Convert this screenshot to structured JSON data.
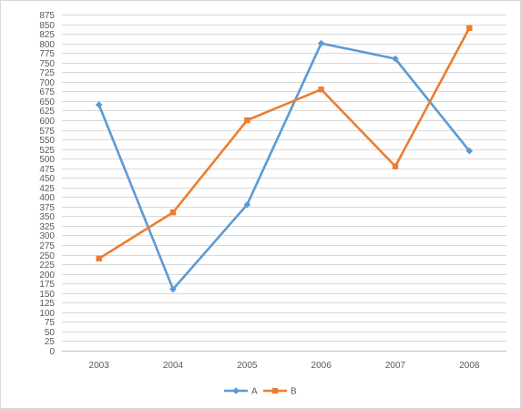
{
  "chart_data": {
    "type": "line",
    "title": "",
    "xlabel": "",
    "ylabel": "",
    "categories": [
      "2003",
      "2004",
      "2005",
      "2006",
      "2007",
      "2008"
    ],
    "ylim": [
      0,
      875
    ],
    "y_ticks": [
      "0",
      "25",
      "50",
      "75",
      "100",
      "125",
      "150",
      "175",
      "200",
      "225",
      "250",
      "275",
      "300",
      "325",
      "350",
      "375",
      "400",
      "425",
      "450",
      "475",
      "500",
      "525",
      "550",
      "575",
      "600",
      "625",
      "650",
      "675",
      "700",
      "725",
      "750",
      "775",
      "800",
      "825",
      "850",
      "875"
    ],
    "grid": "horizontal",
    "legend_position": "bottom",
    "series": [
      {
        "name": "A",
        "values": [
          640,
          160,
          380,
          800,
          760,
          520
        ],
        "color": "#5b9bd5",
        "marker": "diamond"
      },
      {
        "name": "B",
        "values": [
          240,
          360,
          600,
          680,
          480,
          840
        ],
        "color": "#ed7d31",
        "marker": "square"
      }
    ]
  }
}
